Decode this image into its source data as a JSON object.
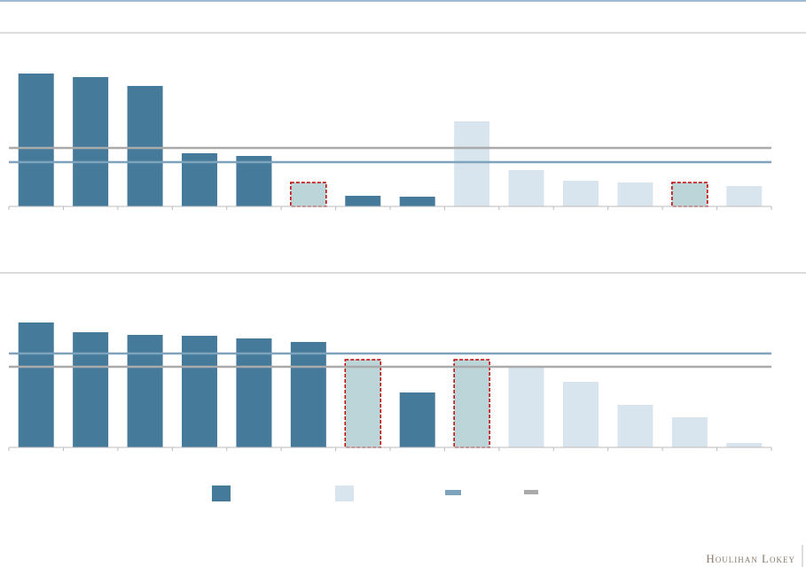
{
  "chart_data": [
    {
      "type": "bar",
      "values": [
        150,
        146,
        136,
        60,
        57,
        27,
        12,
        11,
        96,
        41,
        29,
        27,
        27,
        23
      ],
      "colors": [
        "#467a9b",
        "#467a9b",
        "#467a9b",
        "#467a9b",
        "#467a9b",
        "#bcd5d8",
        "#467a9b",
        "#467a9b",
        "#d8e5ee",
        "#d8e5ee",
        "#d8e5ee",
        "#d8e5ee",
        "#bcd5d8",
        "#d8e5ee"
      ],
      "highlighted": [
        5,
        12
      ],
      "highlight_color": "#c00000",
      "reference_lines": [
        {
          "value": 66,
          "color": "#aaaaaa"
        },
        {
          "value": 50,
          "color": "#7ea4bd"
        }
      ],
      "ylim": [
        0,
        160
      ]
    },
    {
      "type": "bar",
      "values": [
        141,
        130,
        127,
        126,
        123,
        119,
        99,
        62,
        99,
        91,
        74,
        48,
        34,
        5
      ],
      "colors": [
        "#467a9b",
        "#467a9b",
        "#467a9b",
        "#467a9b",
        "#467a9b",
        "#467a9b",
        "#bcd5d8",
        "#467a9b",
        "#bcd5d8",
        "#d8e5ee",
        "#d8e5ee",
        "#d8e5ee",
        "#d8e5ee",
        "#d8e5ee"
      ],
      "highlighted": [
        6,
        8
      ],
      "highlight_color": "#c00000",
      "reference_lines": [
        {
          "value": 106,
          "color": "#7ea4bd"
        },
        {
          "value": 91,
          "color": "#aaaaaa"
        }
      ],
      "ylim": [
        0,
        150
      ]
    }
  ],
  "footer": {
    "brand": "Houlihan Lokey"
  }
}
